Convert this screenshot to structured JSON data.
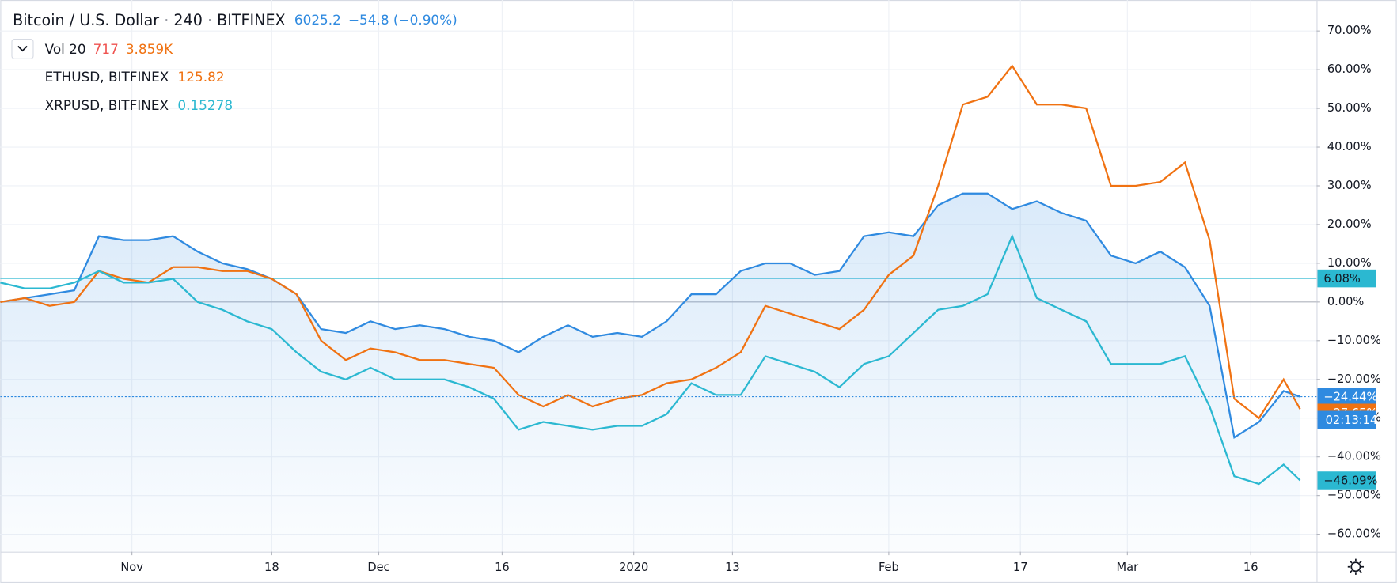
{
  "chart_data": {
    "type": "line",
    "title": "Bitcoin / U.S. Dollar",
    "interval": "240",
    "exchange": "BITFINEX",
    "last": "6025.2",
    "change": "−54.8 (−0.90%)",
    "volume": {
      "label": "Vol 20",
      "value": "717",
      "average": "3.859K"
    },
    "x": [
      0,
      3,
      6,
      9,
      12,
      15,
      18,
      21,
      24,
      27,
      30,
      33,
      36,
      39,
      42,
      45,
      48,
      51,
      54,
      57,
      60,
      63,
      66,
      69,
      72,
      75,
      78,
      81,
      84,
      87,
      90,
      93,
      96,
      99,
      102,
      105,
      108,
      111,
      114,
      117,
      120,
      123,
      126,
      129,
      132,
      135,
      138,
      141,
      144,
      147,
      150,
      153,
      156,
      158
    ],
    "xlim": [
      0,
      160
    ],
    "xticks": [
      {
        "value": 16,
        "label": "Nov"
      },
      {
        "value": 33,
        "label": "18"
      },
      {
        "value": 46,
        "label": "Dec"
      },
      {
        "value": 61,
        "label": "16"
      },
      {
        "value": 77,
        "label": "2020"
      },
      {
        "value": 89,
        "label": "13"
      },
      {
        "value": 108,
        "label": "Feb"
      },
      {
        "value": 124,
        "label": "17"
      },
      {
        "value": 137,
        "label": "Mar"
      },
      {
        "value": 152,
        "label": "16"
      }
    ],
    "ylim": [
      -64.5,
      78
    ],
    "yticks": [
      {
        "value": -60,
        "label": "−60.00%"
      },
      {
        "value": -50,
        "label": "−50.00%"
      },
      {
        "value": -40,
        "label": "−40.00%"
      },
      {
        "value": -30,
        "label": "−30.00%"
      },
      {
        "value": -20,
        "label": "−20.00%"
      },
      {
        "value": -10,
        "label": "−10.00%"
      },
      {
        "value": 0,
        "label": "0.00%"
      },
      {
        "value": 10,
        "label": "10.00%"
      },
      {
        "value": 20,
        "label": "20.00%"
      },
      {
        "value": 30,
        "label": "30.00%"
      },
      {
        "value": 40,
        "label": "40.00%"
      },
      {
        "value": 50,
        "label": "50.00%"
      },
      {
        "value": 60,
        "label": "60.00%"
      },
      {
        "value": 70,
        "label": "70.00%"
      }
    ],
    "grid": true,
    "series": [
      {
        "color": "#2f8ae0",
        "area": true,
        "values": [
          0,
          1,
          2,
          3,
          17,
          16,
          16,
          17,
          13,
          10,
          8.5,
          6,
          2,
          -7,
          -8,
          -5,
          -7,
          -6,
          -7,
          -9,
          -10,
          -13,
          -9,
          -6,
          -9,
          -8,
          -9,
          -5,
          2,
          2,
          8,
          10,
          10,
          7,
          8,
          17,
          18,
          17,
          25,
          28,
          28,
          24,
          26,
          23,
          21,
          12,
          10,
          13,
          9,
          -1,
          -35,
          -31,
          -23,
          -24.44
        ],
        "last_label": {
          "value": -24.44,
          "label": "−24.44%"
        }
      },
      {
        "name": "ETHUSD, BITFINEX",
        "last": "125.82",
        "color": "#f07212",
        "values": [
          0,
          1,
          -1,
          0,
          8,
          6,
          5,
          9,
          9,
          8,
          8,
          6,
          2,
          -10,
          -15,
          -12,
          -13,
          -15,
          -15,
          -16,
          -17,
          -24,
          -27,
          -24,
          -27,
          -25,
          -24,
          -21,
          -20,
          -17,
          -13,
          -1,
          -3,
          -5,
          -7,
          -2,
          7,
          12,
          30,
          51,
          53,
          61,
          51,
          51,
          50,
          30,
          30,
          31,
          36,
          16,
          -25,
          -30,
          -20,
          -27.65
        ],
        "last_label": {
          "value": -27.65,
          "label": "−27.65%"
        }
      },
      {
        "name": "XRPUSD, BITFINEX",
        "last": "0.15278",
        "color": "#2bb8d1",
        "values": [
          5,
          3.5,
          3.5,
          5,
          8,
          5,
          5,
          6,
          0,
          -2,
          -5,
          -7,
          -13,
          -18,
          -20,
          -17,
          -20,
          -20,
          -20,
          -22,
          -25,
          -33,
          -31,
          -32,
          -33,
          -32,
          -32,
          -29,
          -21,
          -24,
          -24,
          -14,
          -16,
          -18,
          -22,
          -16,
          -14,
          -8,
          -2,
          -1,
          2,
          17,
          1,
          -2,
          -5,
          -16,
          -16,
          -16,
          -14,
          -27,
          -45,
          -47,
          -42,
          -46.09
        ],
        "last_label": {
          "value": -46.09,
          "label": "−46.09%"
        }
      }
    ],
    "price_line": {
      "value": 6.08,
      "label": "6.08%",
      "color": "#2bb8d1"
    },
    "countdown": "02:13:14"
  }
}
